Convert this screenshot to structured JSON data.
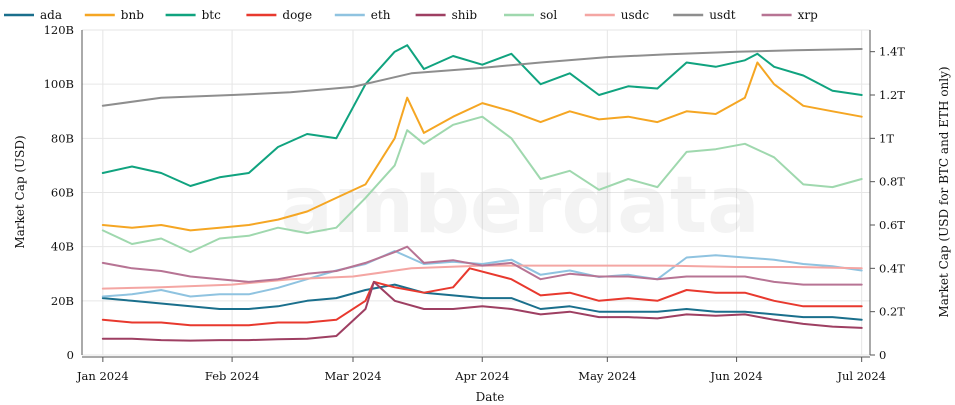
{
  "chart_data": {
    "type": "line",
    "watermark": "amberdata",
    "xlabel": "Date",
    "ylabel_left": "Market Cap (USD)",
    "ylabel_right": "Market Cap (USD for BTC and ETH only)",
    "x_ticks": [
      "Jan 2024",
      "Feb 2024",
      "Mar 2024",
      "Apr 2024",
      "May 2024",
      "Jun 2024",
      "Jul 2024"
    ],
    "x_range": [
      "2023-12-27",
      "2024-07-03"
    ],
    "y_left_ticks": [
      "0",
      "20B",
      "40B",
      "60B",
      "80B",
      "100B",
      "120B"
    ],
    "y_left_range": [
      0,
      120
    ],
    "y_left_unit": "B",
    "y_right_ticks": [
      "0",
      "0.2T",
      "0.4T",
      "0.6T",
      "0.8T",
      "1T",
      "1.2T",
      "1.4T"
    ],
    "y_right_range": [
      0,
      1.5
    ],
    "y_right_unit": "T",
    "grid": true,
    "legend_position": "top",
    "series": [
      {
        "name": "ada",
        "color": "#1a6f8c",
        "axis": "left",
        "points": [
          [
            "2024-01-01",
            21
          ],
          [
            "2024-01-08",
            20
          ],
          [
            "2024-01-15",
            19
          ],
          [
            "2024-01-22",
            18
          ],
          [
            "2024-01-29",
            17
          ],
          [
            "2024-02-05",
            17
          ],
          [
            "2024-02-12",
            18
          ],
          [
            "2024-02-19",
            20
          ],
          [
            "2024-02-26",
            21
          ],
          [
            "2024-03-04",
            24
          ],
          [
            "2024-03-11",
            26
          ],
          [
            "2024-03-18",
            23
          ],
          [
            "2024-03-25",
            22
          ],
          [
            "2024-04-01",
            21
          ],
          [
            "2024-04-08",
            21
          ],
          [
            "2024-04-15",
            17
          ],
          [
            "2024-04-22",
            18
          ],
          [
            "2024-04-29",
            16
          ],
          [
            "2024-05-06",
            16
          ],
          [
            "2024-05-13",
            16
          ],
          [
            "2024-05-20",
            17
          ],
          [
            "2024-05-27",
            16
          ],
          [
            "2024-06-03",
            16
          ],
          [
            "2024-06-10",
            15
          ],
          [
            "2024-06-17",
            14
          ],
          [
            "2024-06-24",
            14
          ],
          [
            "2024-07-01",
            13
          ]
        ]
      },
      {
        "name": "bnb",
        "color": "#f5a623",
        "axis": "left",
        "points": [
          [
            "2024-01-01",
            48
          ],
          [
            "2024-01-08",
            47
          ],
          [
            "2024-01-15",
            48
          ],
          [
            "2024-01-22",
            46
          ],
          [
            "2024-01-29",
            47
          ],
          [
            "2024-02-05",
            48
          ],
          [
            "2024-02-12",
            50
          ],
          [
            "2024-02-19",
            53
          ],
          [
            "2024-02-26",
            58
          ],
          [
            "2024-03-04",
            63
          ],
          [
            "2024-03-11",
            80
          ],
          [
            "2024-03-14",
            95
          ],
          [
            "2024-03-18",
            82
          ],
          [
            "2024-03-25",
            88
          ],
          [
            "2024-04-01",
            93
          ],
          [
            "2024-04-08",
            90
          ],
          [
            "2024-04-15",
            86
          ],
          [
            "2024-04-22",
            90
          ],
          [
            "2024-04-29",
            87
          ],
          [
            "2024-05-06",
            88
          ],
          [
            "2024-05-13",
            86
          ],
          [
            "2024-05-20",
            90
          ],
          [
            "2024-05-27",
            89
          ],
          [
            "2024-06-03",
            95
          ],
          [
            "2024-06-06",
            108
          ],
          [
            "2024-06-10",
            100
          ],
          [
            "2024-06-17",
            92
          ],
          [
            "2024-06-24",
            90
          ],
          [
            "2024-07-01",
            88
          ]
        ]
      },
      {
        "name": "btc",
        "color": "#10a37f",
        "axis": "right",
        "points": [
          [
            "2024-01-01",
            0.84
          ],
          [
            "2024-01-08",
            0.87
          ],
          [
            "2024-01-15",
            0.84
          ],
          [
            "2024-01-22",
            0.78
          ],
          [
            "2024-01-29",
            0.82
          ],
          [
            "2024-02-05",
            0.84
          ],
          [
            "2024-02-12",
            0.96
          ],
          [
            "2024-02-19",
            1.02
          ],
          [
            "2024-02-26",
            1.0
          ],
          [
            "2024-03-04",
            1.25
          ],
          [
            "2024-03-11",
            1.4
          ],
          [
            "2024-03-14",
            1.43
          ],
          [
            "2024-03-18",
            1.32
          ],
          [
            "2024-03-25",
            1.38
          ],
          [
            "2024-04-01",
            1.34
          ],
          [
            "2024-04-08",
            1.39
          ],
          [
            "2024-04-15",
            1.25
          ],
          [
            "2024-04-22",
            1.3
          ],
          [
            "2024-04-29",
            1.2
          ],
          [
            "2024-05-06",
            1.24
          ],
          [
            "2024-05-13",
            1.23
          ],
          [
            "2024-05-20",
            1.35
          ],
          [
            "2024-05-27",
            1.33
          ],
          [
            "2024-06-03",
            1.36
          ],
          [
            "2024-06-06",
            1.39
          ],
          [
            "2024-06-10",
            1.33
          ],
          [
            "2024-06-17",
            1.29
          ],
          [
            "2024-06-24",
            1.22
          ],
          [
            "2024-07-01",
            1.2
          ]
        ]
      },
      {
        "name": "doge",
        "color": "#e8392e",
        "axis": "left",
        "points": [
          [
            "2024-01-01",
            13
          ],
          [
            "2024-01-08",
            12
          ],
          [
            "2024-01-15",
            12
          ],
          [
            "2024-01-22",
            11
          ],
          [
            "2024-01-29",
            11
          ],
          [
            "2024-02-05",
            11
          ],
          [
            "2024-02-12",
            12
          ],
          [
            "2024-02-19",
            12
          ],
          [
            "2024-02-26",
            13
          ],
          [
            "2024-03-04",
            20
          ],
          [
            "2024-03-06",
            27
          ],
          [
            "2024-03-11",
            25
          ],
          [
            "2024-03-18",
            23
          ],
          [
            "2024-03-25",
            25
          ],
          [
            "2024-03-29",
            32
          ],
          [
            "2024-04-08",
            28
          ],
          [
            "2024-04-15",
            22
          ],
          [
            "2024-04-22",
            23
          ],
          [
            "2024-04-29",
            20
          ],
          [
            "2024-05-06",
            21
          ],
          [
            "2024-05-13",
            20
          ],
          [
            "2024-05-20",
            24
          ],
          [
            "2024-05-27",
            23
          ],
          [
            "2024-06-03",
            23
          ],
          [
            "2024-06-10",
            20
          ],
          [
            "2024-06-17",
            18
          ],
          [
            "2024-06-24",
            18
          ],
          [
            "2024-07-01",
            18
          ]
        ]
      },
      {
        "name": "eth",
        "color": "#8fc3e0",
        "axis": "right",
        "points": [
          [
            "2024-01-01",
            0.27
          ],
          [
            "2024-01-08",
            0.28
          ],
          [
            "2024-01-15",
            0.3
          ],
          [
            "2024-01-22",
            0.27
          ],
          [
            "2024-01-29",
            0.28
          ],
          [
            "2024-02-05",
            0.28
          ],
          [
            "2024-02-12",
            0.31
          ],
          [
            "2024-02-19",
            0.35
          ],
          [
            "2024-02-26",
            0.39
          ],
          [
            "2024-03-04",
            0.42
          ],
          [
            "2024-03-11",
            0.48
          ],
          [
            "2024-03-18",
            0.42
          ],
          [
            "2024-03-25",
            0.43
          ],
          [
            "2024-04-01",
            0.42
          ],
          [
            "2024-04-08",
            0.44
          ],
          [
            "2024-04-15",
            0.37
          ],
          [
            "2024-04-22",
            0.39
          ],
          [
            "2024-04-29",
            0.36
          ],
          [
            "2024-05-06",
            0.37
          ],
          [
            "2024-05-13",
            0.35
          ],
          [
            "2024-05-20",
            0.45
          ],
          [
            "2024-05-27",
            0.46
          ],
          [
            "2024-06-03",
            0.45
          ],
          [
            "2024-06-10",
            0.44
          ],
          [
            "2024-06-17",
            0.42
          ],
          [
            "2024-06-24",
            0.41
          ],
          [
            "2024-07-01",
            0.39
          ]
        ]
      },
      {
        "name": "shib",
        "color": "#9e3f62",
        "axis": "left",
        "points": [
          [
            "2024-01-01",
            6
          ],
          [
            "2024-01-08",
            6
          ],
          [
            "2024-01-15",
            5.5
          ],
          [
            "2024-01-22",
            5.3
          ],
          [
            "2024-01-29",
            5.5
          ],
          [
            "2024-02-05",
            5.5
          ],
          [
            "2024-02-12",
            5.8
          ],
          [
            "2024-02-19",
            6
          ],
          [
            "2024-02-26",
            7
          ],
          [
            "2024-03-04",
            17
          ],
          [
            "2024-03-06",
            27
          ],
          [
            "2024-03-11",
            20
          ],
          [
            "2024-03-18",
            17
          ],
          [
            "2024-03-25",
            17
          ],
          [
            "2024-04-01",
            18
          ],
          [
            "2024-04-08",
            17
          ],
          [
            "2024-04-15",
            15
          ],
          [
            "2024-04-22",
            16
          ],
          [
            "2024-04-29",
            14
          ],
          [
            "2024-05-06",
            14
          ],
          [
            "2024-05-13",
            13.5
          ],
          [
            "2024-05-20",
            15
          ],
          [
            "2024-05-27",
            14.5
          ],
          [
            "2024-06-03",
            15
          ],
          [
            "2024-06-10",
            13
          ],
          [
            "2024-06-17",
            11.5
          ],
          [
            "2024-06-24",
            10.5
          ],
          [
            "2024-07-01",
            10
          ]
        ]
      },
      {
        "name": "sol",
        "color": "#9fd8ae",
        "axis": "left",
        "points": [
          [
            "2024-01-01",
            46
          ],
          [
            "2024-01-08",
            41
          ],
          [
            "2024-01-15",
            43
          ],
          [
            "2024-01-22",
            38
          ],
          [
            "2024-01-29",
            43
          ],
          [
            "2024-02-05",
            44
          ],
          [
            "2024-02-12",
            47
          ],
          [
            "2024-02-19",
            45
          ],
          [
            "2024-02-26",
            47
          ],
          [
            "2024-03-04",
            58
          ],
          [
            "2024-03-11",
            70
          ],
          [
            "2024-03-14",
            83
          ],
          [
            "2024-03-18",
            78
          ],
          [
            "2024-03-25",
            85
          ],
          [
            "2024-04-01",
            88
          ],
          [
            "2024-04-08",
            80
          ],
          [
            "2024-04-15",
            65
          ],
          [
            "2024-04-22",
            68
          ],
          [
            "2024-04-29",
            61
          ],
          [
            "2024-05-06",
            65
          ],
          [
            "2024-05-13",
            62
          ],
          [
            "2024-05-20",
            75
          ],
          [
            "2024-05-27",
            76
          ],
          [
            "2024-06-03",
            78
          ],
          [
            "2024-06-10",
            73
          ],
          [
            "2024-06-17",
            63
          ],
          [
            "2024-06-24",
            62
          ],
          [
            "2024-07-01",
            65
          ]
        ]
      },
      {
        "name": "usdc",
        "color": "#f4a6a3",
        "axis": "left",
        "points": [
          [
            "2024-01-01",
            24.5
          ],
          [
            "2024-01-15",
            25
          ],
          [
            "2024-02-01",
            26
          ],
          [
            "2024-02-15",
            28
          ],
          [
            "2024-03-01",
            29
          ],
          [
            "2024-03-15",
            32
          ],
          [
            "2024-04-01",
            33
          ],
          [
            "2024-04-15",
            33
          ],
          [
            "2024-05-01",
            33
          ],
          [
            "2024-05-15",
            33
          ],
          [
            "2024-06-01",
            32.5
          ],
          [
            "2024-06-15",
            32.5
          ],
          [
            "2024-07-01",
            32
          ]
        ]
      },
      {
        "name": "usdt",
        "color": "#8e8e8e",
        "axis": "left",
        "points": [
          [
            "2024-01-01",
            92
          ],
          [
            "2024-01-15",
            95
          ],
          [
            "2024-02-01",
            96
          ],
          [
            "2024-02-15",
            97
          ],
          [
            "2024-03-01",
            99
          ],
          [
            "2024-03-15",
            104
          ],
          [
            "2024-04-01",
            106
          ],
          [
            "2024-04-15",
            108
          ],
          [
            "2024-05-01",
            110
          ],
          [
            "2024-05-15",
            111
          ],
          [
            "2024-06-01",
            112
          ],
          [
            "2024-06-15",
            112.5
          ],
          [
            "2024-07-01",
            113
          ]
        ]
      },
      {
        "name": "xrp",
        "color": "#b77494",
        "axis": "left",
        "points": [
          [
            "2024-01-01",
            34
          ],
          [
            "2024-01-08",
            32
          ],
          [
            "2024-01-15",
            31
          ],
          [
            "2024-01-22",
            29
          ],
          [
            "2024-01-29",
            28
          ],
          [
            "2024-02-05",
            27
          ],
          [
            "2024-02-12",
            28
          ],
          [
            "2024-02-19",
            30
          ],
          [
            "2024-02-26",
            31
          ],
          [
            "2024-03-04",
            34
          ],
          [
            "2024-03-11",
            38
          ],
          [
            "2024-03-14",
            40
          ],
          [
            "2024-03-18",
            34
          ],
          [
            "2024-03-25",
            35
          ],
          [
            "2024-04-01",
            33
          ],
          [
            "2024-04-08",
            34
          ],
          [
            "2024-04-15",
            28
          ],
          [
            "2024-04-22",
            30
          ],
          [
            "2024-04-29",
            29
          ],
          [
            "2024-05-06",
            29
          ],
          [
            "2024-05-13",
            28
          ],
          [
            "2024-05-20",
            29
          ],
          [
            "2024-05-27",
            29
          ],
          [
            "2024-06-03",
            29
          ],
          [
            "2024-06-10",
            27
          ],
          [
            "2024-06-17",
            26
          ],
          [
            "2024-06-24",
            26
          ],
          [
            "2024-07-01",
            26
          ]
        ]
      }
    ]
  }
}
